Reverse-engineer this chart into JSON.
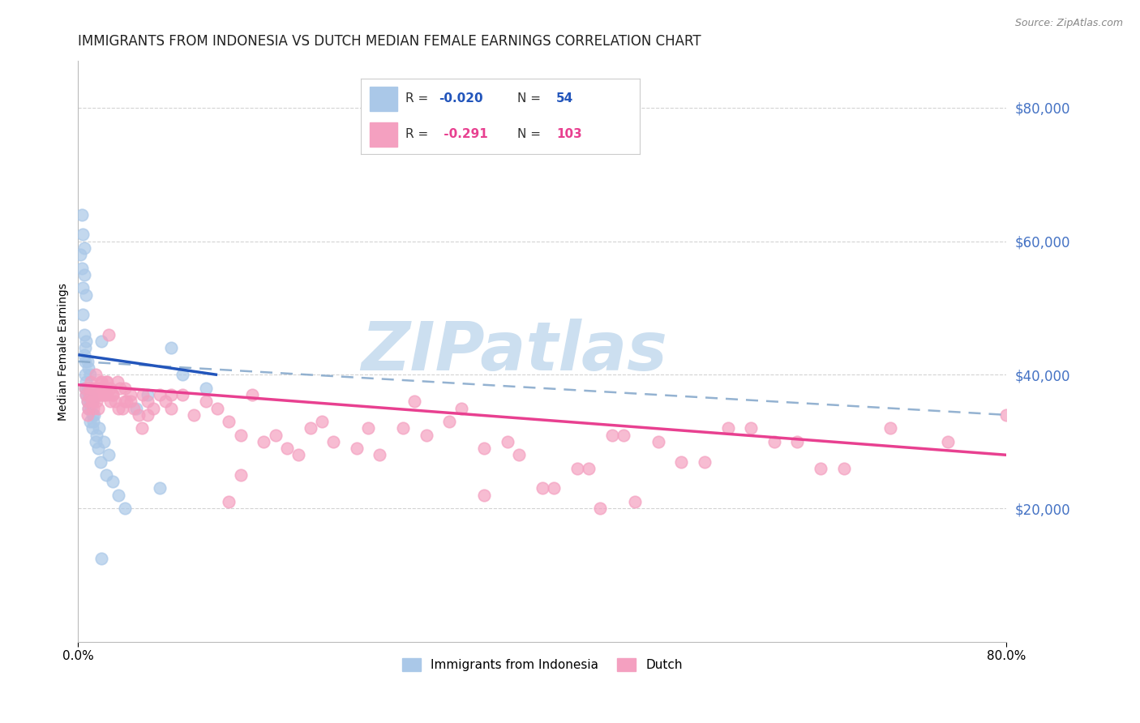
{
  "title": "IMMIGRANTS FROM INDONESIA VS DUTCH MEDIAN FEMALE EARNINGS CORRELATION CHART",
  "source": "Source: ZipAtlas.com",
  "ylabel": "Median Female Earnings",
  "legend_entries": [
    {
      "label": "Immigrants from Indonesia",
      "R": -0.02,
      "N": 54,
      "color": "#6baed6"
    },
    {
      "label": "Dutch",
      "R": -0.291,
      "N": 103,
      "color": "#e8609a"
    }
  ],
  "xmin": 0.0,
  "xmax": 0.8,
  "ymin": 0,
  "ymax": 87000,
  "background_color": "#ffffff",
  "grid_color": "#c8c8c8",
  "watermark": "ZIPatlas",
  "blue_scatter_color": "#aac8e8",
  "pink_scatter_color": "#f4a0c0",
  "blue_line_color": "#2255bb",
  "pink_line_color": "#e84090",
  "blue_dashed_color": "#88aacc",
  "title_fontsize": 12,
  "axis_label_fontsize": 10,
  "tick_fontsize": 11,
  "right_tick_color": "#4472c4",
  "watermark_color": "#ccdff0",
  "watermark_fontsize": 60,
  "blue_scatter_x": [
    0.002,
    0.003,
    0.003,
    0.004,
    0.004,
    0.004,
    0.005,
    0.005,
    0.005,
    0.005,
    0.006,
    0.006,
    0.006,
    0.007,
    0.007,
    0.007,
    0.007,
    0.008,
    0.008,
    0.008,
    0.009,
    0.009,
    0.009,
    0.01,
    0.01,
    0.01,
    0.01,
    0.011,
    0.011,
    0.012,
    0.012,
    0.012,
    0.013,
    0.014,
    0.015,
    0.016,
    0.017,
    0.018,
    0.019,
    0.02,
    0.022,
    0.024,
    0.026,
    0.03,
    0.035,
    0.04,
    0.05,
    0.06,
    0.07,
    0.08,
    0.09,
    0.11,
    0.02,
    0.006
  ],
  "blue_scatter_y": [
    58000,
    64000,
    56000,
    49000,
    53000,
    61000,
    59000,
    46000,
    43000,
    55000,
    44000,
    40000,
    38000,
    45000,
    39000,
    37000,
    52000,
    42000,
    38000,
    36000,
    41000,
    37000,
    35000,
    40000,
    38000,
    36000,
    33000,
    37000,
    35000,
    36000,
    34000,
    32000,
    33000,
    34000,
    30000,
    31000,
    29000,
    32000,
    27000,
    45000,
    30000,
    25000,
    28000,
    24000,
    22000,
    20000,
    35000,
    37000,
    23000,
    44000,
    40000,
    38000,
    12500,
    42000
  ],
  "pink_scatter_x": [
    0.006,
    0.007,
    0.008,
    0.009,
    0.01,
    0.011,
    0.012,
    0.013,
    0.014,
    0.015,
    0.016,
    0.017,
    0.018,
    0.019,
    0.02,
    0.021,
    0.022,
    0.023,
    0.024,
    0.025,
    0.026,
    0.028,
    0.03,
    0.032,
    0.034,
    0.036,
    0.038,
    0.04,
    0.042,
    0.045,
    0.048,
    0.052,
    0.056,
    0.06,
    0.065,
    0.07,
    0.075,
    0.08,
    0.09,
    0.1,
    0.11,
    0.12,
    0.13,
    0.14,
    0.15,
    0.16,
    0.18,
    0.2,
    0.22,
    0.24,
    0.26,
    0.28,
    0.3,
    0.32,
    0.35,
    0.38,
    0.41,
    0.44,
    0.47,
    0.5,
    0.54,
    0.58,
    0.62,
    0.66,
    0.7,
    0.75,
    0.8,
    0.19,
    0.21,
    0.25,
    0.29,
    0.33,
    0.37,
    0.4,
    0.43,
    0.46,
    0.48,
    0.52,
    0.56,
    0.6,
    0.64,
    0.17,
    0.14,
    0.13,
    0.015,
    0.018,
    0.022,
    0.03,
    0.035,
    0.04,
    0.025,
    0.045,
    0.055,
    0.008,
    0.01,
    0.012,
    0.016,
    0.02,
    0.028,
    0.06,
    0.08,
    0.45,
    0.35
  ],
  "pink_scatter_y": [
    38000,
    37000,
    36000,
    35000,
    37000,
    39000,
    36000,
    35000,
    38000,
    37000,
    36000,
    35000,
    38000,
    37000,
    39000,
    38000,
    37000,
    38000,
    39000,
    37000,
    46000,
    38000,
    37000,
    36000,
    39000,
    38000,
    35000,
    38000,
    36000,
    37000,
    35000,
    34000,
    37000,
    36000,
    35000,
    37000,
    36000,
    35000,
    37000,
    34000,
    36000,
    35000,
    33000,
    31000,
    37000,
    30000,
    29000,
    32000,
    30000,
    29000,
    28000,
    32000,
    31000,
    33000,
    29000,
    28000,
    23000,
    26000,
    31000,
    30000,
    27000,
    32000,
    30000,
    26000,
    32000,
    30000,
    34000,
    28000,
    33000,
    32000,
    36000,
    35000,
    30000,
    23000,
    26000,
    31000,
    21000,
    27000,
    32000,
    30000,
    26000,
    31000,
    25000,
    21000,
    40000,
    37000,
    37000,
    37000,
    35000,
    36000,
    39000,
    36000,
    32000,
    34000,
    38000,
    36000,
    38000,
    39000,
    36000,
    34000,
    37000,
    20000,
    22000
  ]
}
